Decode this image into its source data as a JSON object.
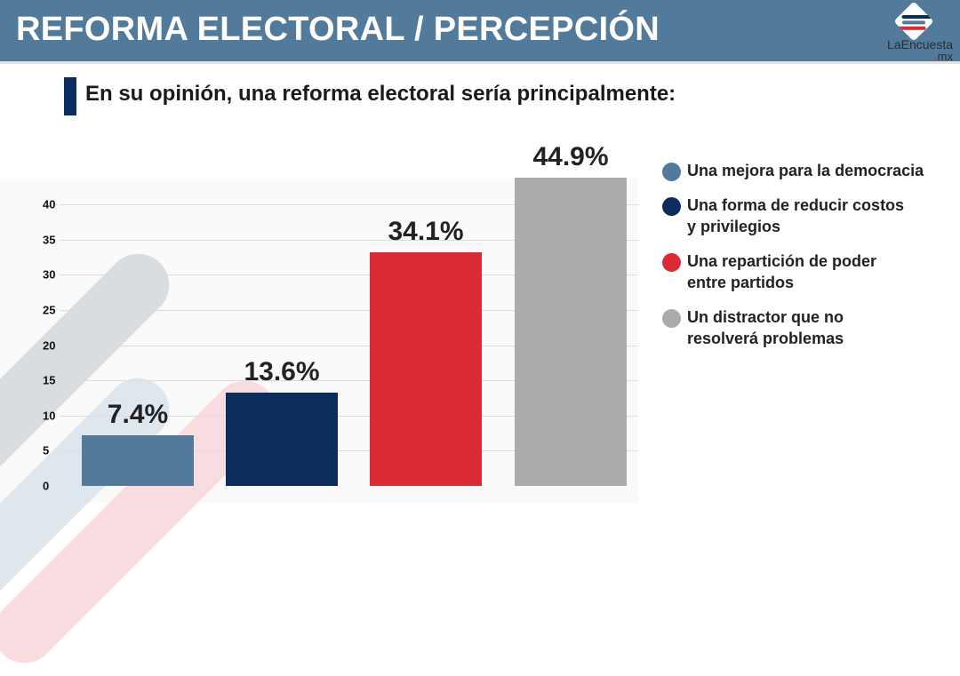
{
  "header": {
    "title": "REFORMA ELECTORAL / PERCEPCIÓN",
    "logo_brand": "LaEncuesta",
    "logo_tld_dot": ".",
    "logo_tld": "mx"
  },
  "question": "En su opinión, una reforma electoral sería principalmente:",
  "chart_data": {
    "type": "bar",
    "title": "En su opinión, una reforma electoral sería principalmente:",
    "categories": [
      "Una mejora para la democracia",
      "Una forma de reducir costos y privilegios",
      "Una repartición de poder entre partidos",
      "Un distractor que no resolverá problemas"
    ],
    "values": [
      7.4,
      13.6,
      34.1,
      44.9
    ],
    "labels": [
      "7.4%",
      "13.6%",
      "34.1%",
      "44.9%"
    ],
    "colors": [
      "#527a9b",
      "#0b2d5e",
      "#dc2b35",
      "#ababab"
    ],
    "yticks": [
      "0",
      "5",
      "10",
      "15",
      "20",
      "25",
      "30",
      "35",
      "40"
    ],
    "ylim": [
      0,
      45
    ],
    "grid": true,
    "legend_position": "right",
    "legend": [
      {
        "line1": "Una mejora para la democracia",
        "line2": ""
      },
      {
        "line1": "Una forma de reducir costos",
        "line2": "y privilegios"
      },
      {
        "line1": "Una repartición de poder",
        "line2": "entre partidos"
      },
      {
        "line1": "Un distractor que no",
        "line2": "resolverá problemas"
      }
    ]
  }
}
